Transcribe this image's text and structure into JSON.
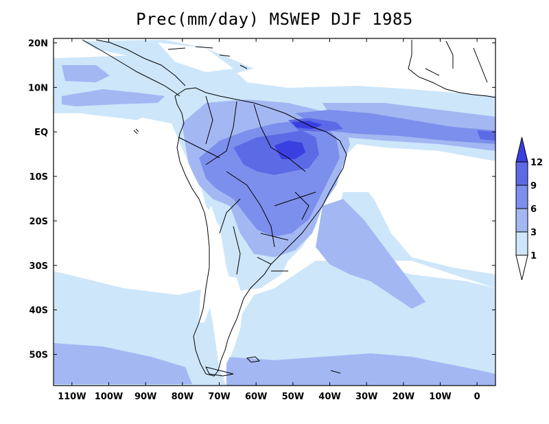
{
  "title": "Prec(mm/day) MSWEP DJF 1985",
  "map": {
    "lon_range": [
      -115,
      5
    ],
    "lat_range": [
      -57,
      21
    ],
    "lon_ticks": [
      {
        "lon": -110,
        "label": "110W"
      },
      {
        "lon": -100,
        "label": "100W"
      },
      {
        "lon": -90,
        "label": "90W"
      },
      {
        "lon": -80,
        "label": "80W"
      },
      {
        "lon": -70,
        "label": "70W"
      },
      {
        "lon": -60,
        "label": "60W"
      },
      {
        "lon": -50,
        "label": "50W"
      },
      {
        "lon": -40,
        "label": "40W"
      },
      {
        "lon": -30,
        "label": "30W"
      },
      {
        "lon": -20,
        "label": "20W"
      },
      {
        "lon": -10,
        "label": "10W"
      },
      {
        "lon": 0,
        "label": "0"
      }
    ],
    "lat_ticks": [
      {
        "lat": 20,
        "label": "20N"
      },
      {
        "lat": 10,
        "label": "10N"
      },
      {
        "lat": 0,
        "label": "EQ"
      },
      {
        "lat": -10,
        "label": "10S"
      },
      {
        "lat": -20,
        "label": "20S"
      },
      {
        "lat": -30,
        "label": "30S"
      },
      {
        "lat": -40,
        "label": "40S"
      },
      {
        "lat": -50,
        "label": "50S"
      }
    ]
  },
  "colorbar": {
    "levels": [
      1,
      3,
      6,
      9,
      12
    ],
    "labels": [
      "1",
      "3",
      "6",
      "9",
      "12"
    ],
    "colors": [
      "#ffffff",
      "#cde6fa",
      "#a3b8f2",
      "#7d8fec",
      "#5d6ae5",
      "#3a3fe0"
    ]
  },
  "colors": {
    "land": "#ffffff",
    "outline": "#000000"
  }
}
